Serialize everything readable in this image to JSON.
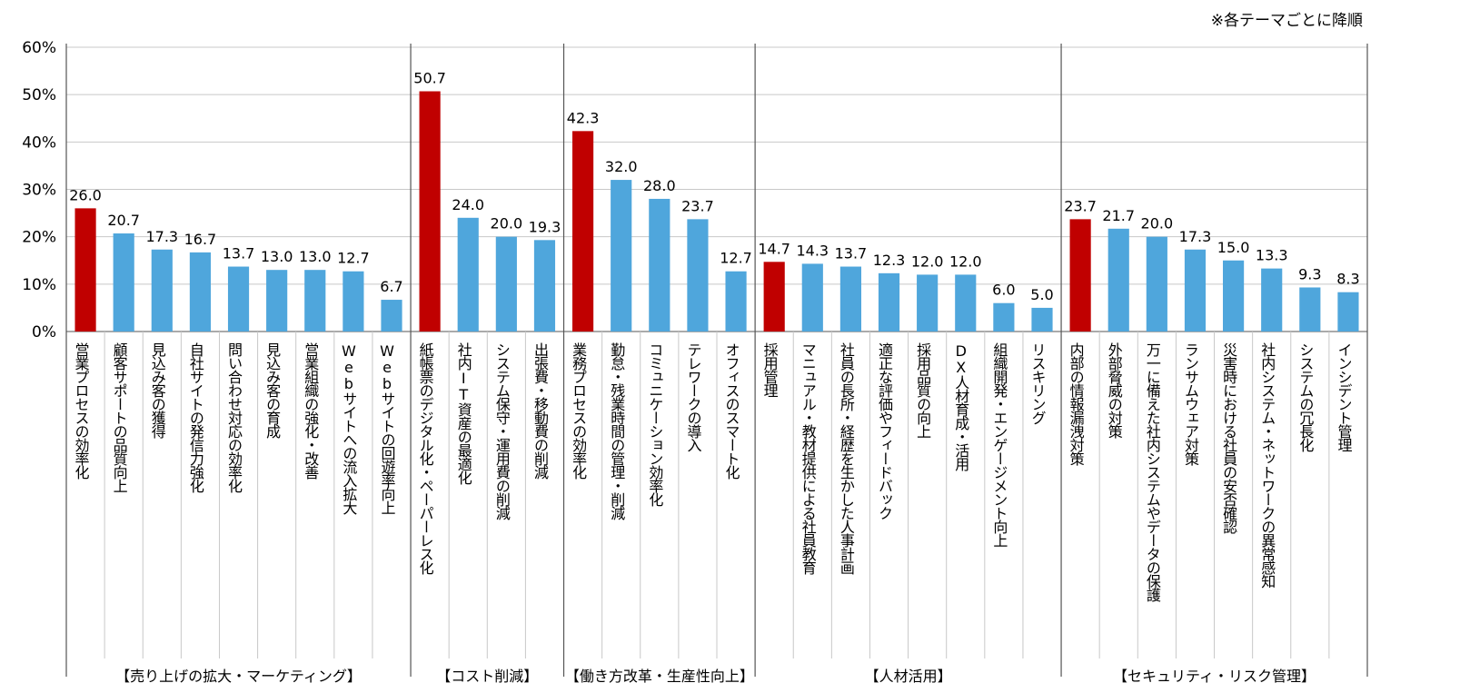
{
  "note": "※各テーマごとに降順",
  "chart_data": {
    "type": "bar",
    "title": "",
    "xlabel": "",
    "ylabel": "",
    "ylim": [
      0,
      60
    ],
    "yticks": [
      "0%",
      "10%",
      "20%",
      "30%",
      "40%",
      "50%",
      "60%"
    ],
    "grid": true,
    "colors": {
      "top": "#c00000",
      "other": "#4fa6dc",
      "grid": "#c8c8c8",
      "axis": "#555555"
    },
    "groups": [
      {
        "name": "【売り上げの拡大・マーケティング】",
        "categories": [
          "営業プロセスの効率化",
          "顧客サポートの品質向上",
          "見込み客の獲得",
          "自社サイトの発信力強化",
          "問い合わせ対応の効率化",
          "見込み客の育成",
          "営業組織の強化・改善",
          "Webサイトへの流入拡大",
          "Webサイトの回遊率向上"
        ],
        "values": [
          26.0,
          20.7,
          17.3,
          16.7,
          13.7,
          13.0,
          13.0,
          12.7,
          6.7
        ],
        "labels": [
          "26.0",
          "20.7",
          "17.3",
          "16.7",
          "13.7",
          "13.0",
          "13.0",
          "12.7",
          "6.7"
        ]
      },
      {
        "name": "【コスト削減】",
        "categories": [
          "紙帳票のデジタル化・ペーパーレス化",
          "社内IT資産の最適化",
          "システム保守・運用費の削減",
          "出張費・移動費の削減"
        ],
        "values": [
          50.7,
          24.0,
          20.0,
          19.3
        ],
        "labels": [
          "50.7",
          "24.0",
          "20.0",
          "19.3"
        ]
      },
      {
        "name": "【働き方改革・生産性向上】",
        "categories": [
          "業務プロセスの効率化",
          "勤怠・残業時間の管理・削減",
          "コミュニケーション効率化",
          "テレワークの導入",
          "オフィスのスマート化"
        ],
        "values": [
          42.3,
          32.0,
          28.0,
          23.7,
          12.7
        ],
        "labels": [
          "42.3",
          "32.0",
          "28.0",
          "23.7",
          "12.7"
        ]
      },
      {
        "name": "【人材活用】",
        "categories": [
          "採用管理",
          "マニュアル・教材提供による社員教育",
          "社員の長所・経歴を生かした人事計画",
          "適正な評価やフィードバック",
          "採用品質の向上",
          "DX人材育成・活用",
          "組織開発・エンゲージメント向上",
          "リスキリング"
        ],
        "values": [
          14.7,
          14.3,
          13.7,
          12.3,
          12.0,
          12.0,
          6.0,
          5.0
        ],
        "labels": [
          "14.7",
          "14.3",
          "13.7",
          "12.3",
          "12.0",
          "12.0",
          "6.0",
          "5.0"
        ]
      },
      {
        "name": "【セキュリティ・リスク管理】",
        "categories": [
          "内部の情報漏洩対策",
          "外部脅威の対策",
          "万一に備えた社内システムやデータの保護",
          "ランサムウェア対策",
          "災害時における社員の安否確認",
          "社内システム・ネットワークの異常感知",
          "システムの冗長化",
          "インシデント管理"
        ],
        "values": [
          23.7,
          21.7,
          20.0,
          17.3,
          15.0,
          13.3,
          9.3,
          8.3
        ],
        "labels": [
          "23.7",
          "21.7",
          "20.0",
          "17.3",
          "15.0",
          "13.3",
          "9.3",
          "8.3"
        ]
      }
    ]
  }
}
